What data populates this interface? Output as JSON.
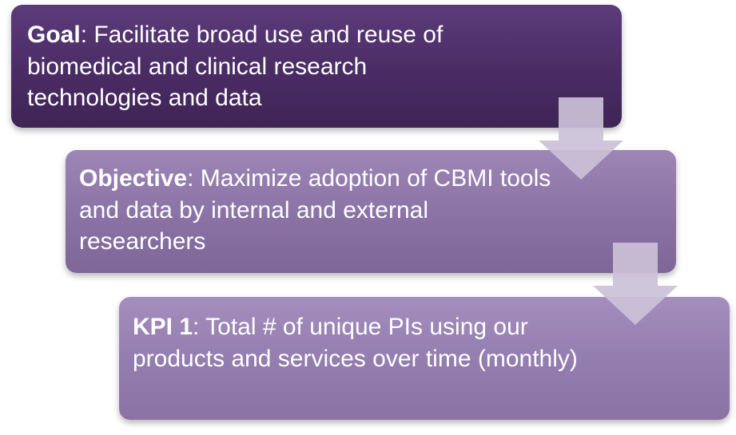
{
  "goal": {
    "label": "Goal",
    "text": ": Facilitate broad use and reuse of biomedical and clinical research technologies and data"
  },
  "objective": {
    "label": "Objective",
    "text": ": Maximize adoption of CBMI tools and data by internal and external researchers"
  },
  "kpi": {
    "label": "KPI 1",
    "text": ": Total # of unique PIs using our products and services over time (monthly)"
  },
  "colors": {
    "goal_fill": "#4a2c64",
    "objective_fill": "#8a72a4",
    "kpi_fill": "#937cae",
    "arrow_fill": "#c9bdd6"
  }
}
